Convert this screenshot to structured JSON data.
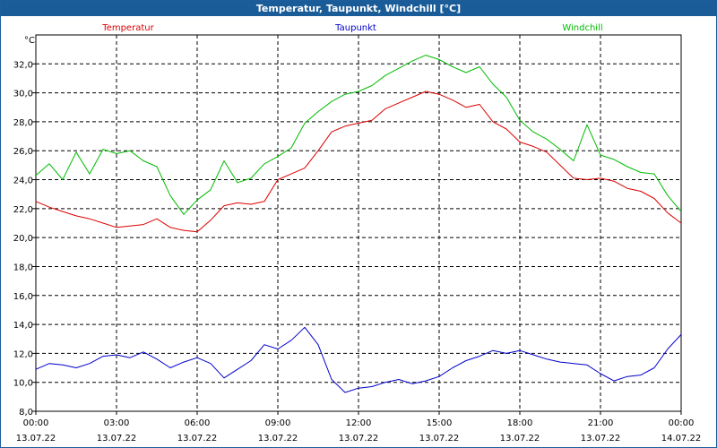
{
  "window": {
    "title": "Temperatur, Taupunkt, Windchill [°C]"
  },
  "chart_data": {
    "type": "line",
    "title": "Temperatur, Taupunkt, Windchill [°C]",
    "ylabel": "°C",
    "xlabel": "",
    "ylim": [
      8,
      34
    ],
    "xlim": [
      0,
      24
    ],
    "y_ticks": [
      "8,0",
      "10,0",
      "12,0",
      "14,0",
      "16,0",
      "18,0",
      "20,0",
      "22,0",
      "24,0",
      "26,0",
      "28,0",
      "30,0",
      "32,0"
    ],
    "x_ticks": [
      {
        "time": "00:00",
        "date": "13.07.22"
      },
      {
        "time": "03:00",
        "date": "13.07.22"
      },
      {
        "time": "06:00",
        "date": "13.07.22"
      },
      {
        "time": "09:00",
        "date": "13.07.22"
      },
      {
        "time": "12:00",
        "date": "13.07.22"
      },
      {
        "time": "15:00",
        "date": "13.07.22"
      },
      {
        "time": "18:00",
        "date": "13.07.22"
      },
      {
        "time": "21:00",
        "date": "13.07.22"
      },
      {
        "time": "00:00",
        "date": "14.07.22"
      }
    ],
    "grid": true,
    "legend_position": "top",
    "series": [
      {
        "name": "Temperatur",
        "color": "#dd0000",
        "x": [
          0,
          0.5,
          1,
          1.5,
          2,
          2.5,
          3,
          3.5,
          4,
          4.5,
          5,
          5.5,
          6,
          6.5,
          7,
          7.5,
          8,
          8.5,
          9,
          9.5,
          10,
          10.5,
          11,
          11.5,
          12,
          12.5,
          13,
          13.5,
          14,
          14.5,
          15,
          15.5,
          16,
          16.5,
          17,
          17.5,
          18,
          18.5,
          19,
          19.5,
          20,
          20.5,
          21,
          21.5,
          22,
          22.5,
          23,
          23.5,
          24
        ],
        "y": [
          22.5,
          22.1,
          21.8,
          21.5,
          21.3,
          21.0,
          20.7,
          20.8,
          20.9,
          21.3,
          20.7,
          20.5,
          20.4,
          21.2,
          22.2,
          22.4,
          22.3,
          22.5,
          24.0,
          24.4,
          24.8,
          26.0,
          27.3,
          27.7,
          27.9,
          28.1,
          28.9,
          29.3,
          29.7,
          30.1,
          29.9,
          29.5,
          29.0,
          29.2,
          28.0,
          27.5,
          26.6,
          26.3,
          25.9,
          25.0,
          24.1,
          24.0,
          24.1,
          23.9,
          23.4,
          23.2,
          22.7,
          21.7,
          21.0
        ]
      },
      {
        "name": "Taupunkt",
        "color": "#0000cc",
        "x": [
          0,
          0.5,
          1,
          1.5,
          2,
          2.5,
          3,
          3.5,
          4,
          4.5,
          5,
          5.5,
          6,
          6.5,
          7,
          7.5,
          8,
          8.5,
          9,
          9.5,
          10,
          10.5,
          11,
          11.5,
          12,
          12.5,
          13,
          13.5,
          14,
          14.5,
          15,
          15.5,
          16,
          16.5,
          17,
          17.5,
          18,
          18.5,
          19,
          19.5,
          20,
          20.5,
          21,
          21.5,
          22,
          22.5,
          23,
          23.5,
          24
        ],
        "y": [
          10.9,
          11.3,
          11.2,
          11.0,
          11.3,
          11.8,
          11.9,
          11.7,
          12.1,
          11.6,
          11.0,
          11.4,
          11.7,
          11.3,
          10.3,
          10.9,
          11.5,
          12.6,
          12.3,
          12.9,
          13.8,
          12.6,
          10.2,
          9.3,
          9.6,
          9.7,
          10.0,
          10.2,
          9.9,
          10.1,
          10.4,
          11.0,
          11.5,
          11.8,
          12.2,
          12.0,
          12.2,
          11.9,
          11.6,
          11.4,
          11.3,
          11.2,
          10.6,
          10.1,
          10.4,
          10.5,
          11.0,
          12.3,
          13.3
        ]
      },
      {
        "name": "Windchill",
        "color": "#00bb00",
        "x": [
          0,
          0.5,
          1,
          1.5,
          2,
          2.5,
          3,
          3.5,
          4,
          4.5,
          5,
          5.5,
          6,
          6.5,
          7,
          7.5,
          8,
          8.5,
          9,
          9.5,
          10,
          10.5,
          11,
          11.5,
          12,
          12.5,
          13,
          13.5,
          14,
          14.5,
          15,
          15.5,
          16,
          16.5,
          17,
          17.5,
          18,
          18.5,
          19,
          19.5,
          20,
          20.5,
          21,
          21.5,
          22,
          22.5,
          23,
          23.5,
          24
        ],
        "y": [
          24.3,
          25.1,
          24.0,
          25.9,
          24.4,
          26.1,
          25.8,
          26.0,
          25.3,
          24.9,
          22.9,
          21.6,
          22.6,
          23.3,
          25.3,
          23.8,
          24.1,
          25.1,
          25.6,
          26.2,
          27.9,
          28.7,
          29.4,
          29.9,
          30.1,
          30.5,
          31.2,
          31.7,
          32.2,
          32.6,
          32.3,
          31.8,
          31.4,
          31.8,
          30.6,
          29.7,
          28.1,
          27.3,
          26.8,
          26.1,
          25.3,
          27.8,
          25.7,
          25.4,
          24.9,
          24.5,
          24.4,
          22.9,
          21.8
        ]
      }
    ]
  }
}
